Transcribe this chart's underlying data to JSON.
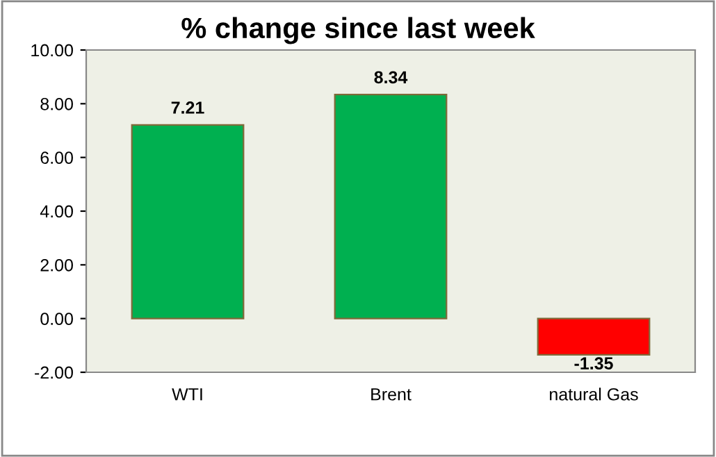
{
  "chart_data": {
    "type": "bar",
    "title": "% change since last week",
    "categories": [
      "WTI",
      "Brent",
      "natural Gas"
    ],
    "values": [
      7.21,
      8.34,
      -1.35
    ],
    "colors": [
      "#00b050",
      "#00b050",
      "#ff0000"
    ],
    "ylim": [
      -2,
      10
    ],
    "yticks": [
      {
        "value": -2,
        "label": "-2.00"
      },
      {
        "value": 0,
        "label": "0.00"
      },
      {
        "value": 2,
        "label": "2.00"
      },
      {
        "value": 4,
        "label": "4.00"
      },
      {
        "value": 6,
        "label": "6.00"
      },
      {
        "value": 8,
        "label": "8.00"
      },
      {
        "value": 10,
        "label": "10.00"
      }
    ],
    "data_labels": true,
    "grid": false,
    "legend": false
  }
}
